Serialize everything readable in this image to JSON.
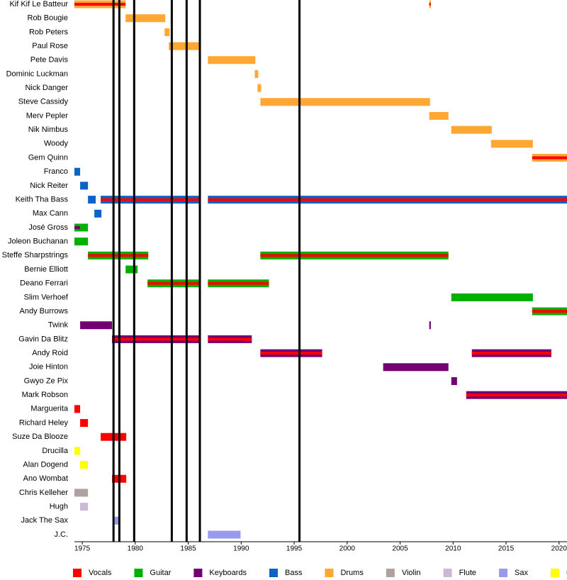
{
  "chart_data": {
    "type": "timeline",
    "xlim": [
      1974.26,
      2020.75
    ],
    "xticks": [
      1975,
      1980,
      1985,
      1990,
      1995,
      2000,
      2005,
      2010,
      2015,
      2020
    ],
    "events": [
      1977.95,
      1978.5,
      1979.9,
      1983.45,
      1984.85,
      1986.1,
      1995.5
    ],
    "roles": [
      {
        "name": "Vocals",
        "color": "#ff0000"
      },
      {
        "name": "Guitar",
        "color": "#00b000"
      },
      {
        "name": "Keyboards",
        "color": "#730073"
      },
      {
        "name": "Bass",
        "color": "#0a64c8"
      },
      {
        "name": "Drums",
        "color": "#ffa733"
      },
      {
        "name": "Violin",
        "color": "#b0a0a0"
      },
      {
        "name": "Flute",
        "color": "#cbb8d8"
      },
      {
        "name": "Sax",
        "color": "#9999ee"
      },
      {
        "name": "unk",
        "color": "#ffff00"
      }
    ],
    "members": [
      {
        "name": "Kif Kif Le Batteur",
        "segments": [
          {
            "start": 1974.26,
            "end": 1979.09,
            "role": "Drums",
            "role2": "Vocals"
          },
          {
            "start": 2007.75,
            "end": 2007.9,
            "role": "Drums",
            "role2": "Vocals"
          }
        ]
      },
      {
        "name": "Rob Bougie",
        "segments": [
          {
            "start": 1979.09,
            "end": 1982.84,
            "role": "Drums"
          }
        ]
      },
      {
        "name": "Rob Peters",
        "segments": [
          {
            "start": 1982.77,
            "end": 1983.24,
            "role": "Drums"
          }
        ]
      },
      {
        "name": "Paul Rose",
        "segments": [
          {
            "start": 1983.17,
            "end": 1986.19,
            "role": "Drums"
          }
        ]
      },
      {
        "name": "Pete Davis",
        "segments": [
          {
            "start": 1986.86,
            "end": 1991.34,
            "role": "Drums"
          }
        ]
      },
      {
        "name": "Dominic Luckman",
        "segments": [
          {
            "start": 1991.28,
            "end": 1991.61,
            "role": "Drums"
          }
        ]
      },
      {
        "name": "Nick Danger",
        "segments": [
          {
            "start": 1991.54,
            "end": 1991.88,
            "role": "Drums"
          }
        ]
      },
      {
        "name": "Steve Cassidy",
        "segments": [
          {
            "start": 1991.81,
            "end": 2007.82,
            "role": "Drums"
          }
        ]
      },
      {
        "name": "Merv Pepler",
        "segments": [
          {
            "start": 2007.75,
            "end": 2009.56,
            "role": "Drums"
          }
        ]
      },
      {
        "name": "Nik Nimbus",
        "segments": [
          {
            "start": 2009.83,
            "end": 2013.65,
            "role": "Drums"
          }
        ]
      },
      {
        "name": "Woody",
        "segments": [
          {
            "start": 2013.58,
            "end": 2017.53,
            "role": "Drums"
          }
        ]
      },
      {
        "name": "Gem Quinn",
        "segments": [
          {
            "start": 2017.46,
            "end": 2020.75,
            "role": "Drums",
            "role2": "Vocals"
          }
        ]
      },
      {
        "name": "Franco",
        "segments": [
          {
            "start": 1974.26,
            "end": 1974.8,
            "role": "Bass"
          }
        ]
      },
      {
        "name": "Nick Reiter",
        "segments": [
          {
            "start": 1974.8,
            "end": 1975.54,
            "role": "Bass"
          }
        ]
      },
      {
        "name": "Keith Tha Bass",
        "segments": [
          {
            "start": 1975.54,
            "end": 1976.27,
            "role": "Bass"
          },
          {
            "start": 1976.74,
            "end": 1986.19,
            "role": "Bass",
            "role2": "Vocals"
          },
          {
            "start": 1986.86,
            "end": 2020.75,
            "role": "Bass",
            "role2": "Vocals"
          }
        ]
      },
      {
        "name": "Max Cann",
        "segments": [
          {
            "start": 1976.14,
            "end": 1976.81,
            "role": "Bass"
          }
        ]
      },
      {
        "name": "José Gross",
        "segments": [
          {
            "start": 1974.26,
            "end": 1974.8,
            "role": "Guitar",
            "role2": "Keyboards"
          },
          {
            "start": 1974.8,
            "end": 1975.54,
            "role": "Guitar"
          }
        ]
      },
      {
        "name": "Joleon Buchanan",
        "segments": [
          {
            "start": 1974.26,
            "end": 1975.54,
            "role": "Guitar"
          }
        ]
      },
      {
        "name": "Steffe Sharpstrings",
        "segments": [
          {
            "start": 1975.54,
            "end": 1981.23,
            "role": "Guitar",
            "role2": "Vocals"
          },
          {
            "start": 1991.81,
            "end": 2009.56,
            "role": "Guitar",
            "role2": "Vocals"
          }
        ]
      },
      {
        "name": "Bernie Elliott",
        "segments": [
          {
            "start": 1979.09,
            "end": 1980.22,
            "role": "Guitar"
          }
        ]
      },
      {
        "name": "Deano Ferrari",
        "segments": [
          {
            "start": 1981.16,
            "end": 1986.19,
            "role": "Guitar",
            "role2": "Vocals"
          },
          {
            "start": 1986.86,
            "end": 1992.62,
            "role": "Guitar",
            "role2": "Vocals"
          }
        ]
      },
      {
        "name": "Slim Verhoef",
        "segments": [
          {
            "start": 2009.83,
            "end": 2017.53,
            "role": "Guitar"
          }
        ]
      },
      {
        "name": "Andy Burrows",
        "segments": [
          {
            "start": 2017.46,
            "end": 2020.75,
            "role": "Guitar",
            "role2": "Vocals"
          }
        ]
      },
      {
        "name": "Twink",
        "segments": [
          {
            "start": 1974.8,
            "end": 1977.81,
            "role": "Keyboards"
          },
          {
            "start": 2007.75,
            "end": 2007.9,
            "role": "Keyboards"
          }
        ]
      },
      {
        "name": "Gavin Da Blitz",
        "segments": [
          {
            "start": 1977.81,
            "end": 1986.19,
            "role": "Keyboards",
            "role2": "Vocals"
          },
          {
            "start": 1986.86,
            "end": 1991.0,
            "role": "Keyboards",
            "role2": "Vocals"
          }
        ]
      },
      {
        "name": "Andy Roid",
        "segments": [
          {
            "start": 1991.81,
            "end": 1997.64,
            "role": "Keyboards",
            "role2": "Vocals"
          },
          {
            "start": 2011.77,
            "end": 2019.27,
            "role": "Keyboards",
            "role2": "Vocals"
          }
        ]
      },
      {
        "name": "Joie Hinton",
        "segments": [
          {
            "start": 2003.4,
            "end": 2009.56,
            "role": "Keyboards"
          }
        ]
      },
      {
        "name": "Gwyo Ze Pix",
        "segments": [
          {
            "start": 2009.83,
            "end": 2010.37,
            "role": "Keyboards"
          }
        ]
      },
      {
        "name": "Mark Robson",
        "segments": [
          {
            "start": 2011.24,
            "end": 2020.75,
            "role": "Keyboards",
            "role2": "Vocals"
          }
        ]
      },
      {
        "name": "Marguerita",
        "segments": [
          {
            "start": 1974.26,
            "end": 1974.8,
            "role": "Vocals"
          }
        ]
      },
      {
        "name": "Richard Heley",
        "segments": [
          {
            "start": 1974.8,
            "end": 1975.54,
            "role": "Vocals"
          }
        ]
      },
      {
        "name": "Suze Da Blooze",
        "segments": [
          {
            "start": 1976.74,
            "end": 1979.15,
            "role": "Vocals"
          }
        ]
      },
      {
        "name": "Drucilla",
        "segments": [
          {
            "start": 1974.26,
            "end": 1974.8,
            "role": "unk"
          }
        ]
      },
      {
        "name": "Alan Dogend",
        "segments": [
          {
            "start": 1974.8,
            "end": 1975.54,
            "role": "unk"
          }
        ]
      },
      {
        "name": "Ano Wombat",
        "segments": [
          {
            "start": 1977.81,
            "end": 1979.15,
            "role": "Vocals"
          }
        ]
      },
      {
        "name": "Chris Kelleher",
        "segments": [
          {
            "start": 1974.26,
            "end": 1975.54,
            "role": "Violin"
          }
        ]
      },
      {
        "name": "Hugh",
        "segments": [
          {
            "start": 1974.8,
            "end": 1975.54,
            "role": "Flute"
          }
        ]
      },
      {
        "name": "Jack The Sax",
        "segments": [
          {
            "start": 1978.0,
            "end": 1978.48,
            "role": "Sax"
          }
        ]
      },
      {
        "name": "J.C.",
        "segments": [
          {
            "start": 1986.86,
            "end": 1989.94,
            "role": "Sax"
          }
        ]
      }
    ]
  }
}
